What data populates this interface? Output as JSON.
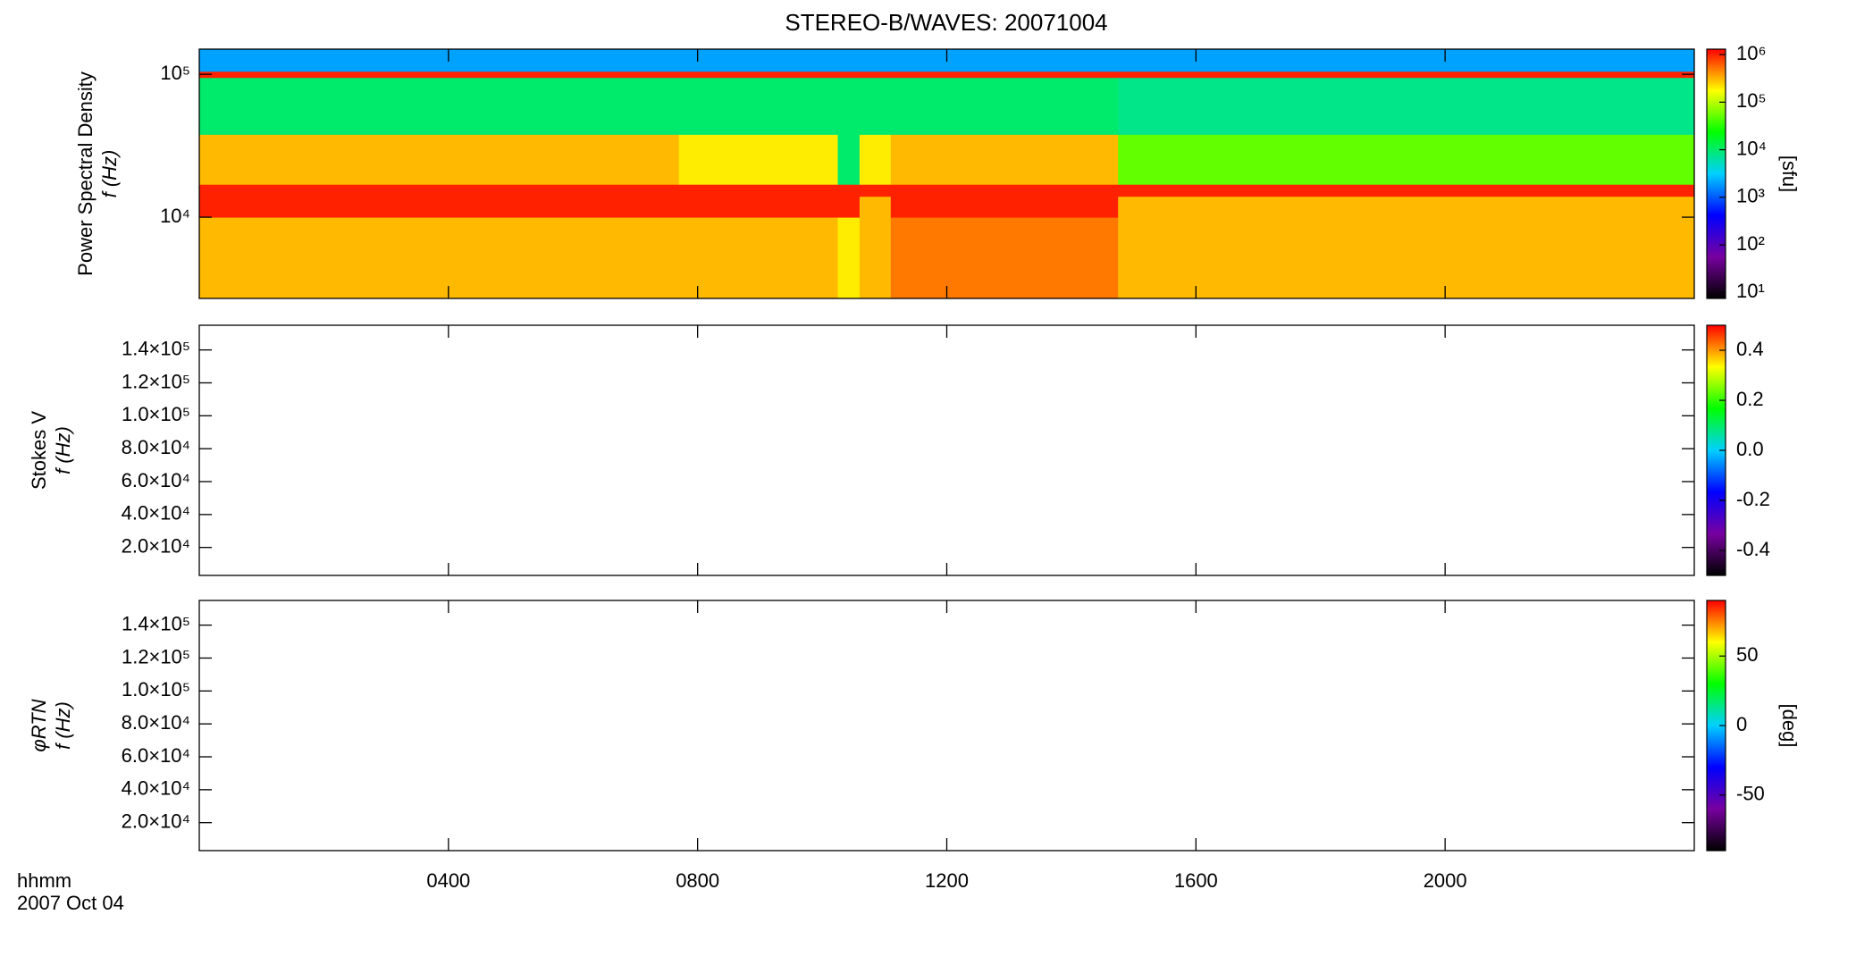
{
  "chart_data": [
    {
      "type": "heatmap",
      "title": "STEREO-B/WAVES: 20071004",
      "ylabel": [
        "Power Spectral Density",
        "f (Hz)"
      ],
      "zlabel": "[sfu]",
      "x": [
        0,
        7.7,
        10.25,
        10.6,
        11.1,
        14.75,
        24
      ],
      "y": [
        2700,
        10000,
        14000,
        17000,
        38000,
        95000,
        105000,
        150000
      ],
      "z": [
        [
          300000,
          300000,
          200000,
          300000,
          500000,
          300000
        ],
        [
          1000000,
          1000000,
          1000000,
          300000,
          1000000,
          300000
        ],
        [
          1000000,
          1000000,
          1000000,
          1000000,
          1000000,
          1000000
        ],
        [
          300000,
          200000,
          10000,
          200000,
          300000,
          50000
        ],
        [
          10000,
          10000,
          10000,
          10000,
          10000,
          8000
        ],
        [
          1000000,
          1000000,
          1000000,
          1000000,
          1000000,
          1000000
        ],
        [
          2000,
          2000,
          2000,
          2000,
          2000,
          2000
        ]
      ],
      "xlim": [
        0,
        24
      ],
      "xticks": [
        4,
        8,
        12,
        16,
        20
      ],
      "ylim": [
        2700,
        150000
      ],
      "ylog": true,
      "yticks": [
        {
          "value": 10000,
          "label": "10⁴"
        },
        {
          "value": 100000,
          "label": "10⁵"
        }
      ],
      "zlim": [
        7.5,
        1300000
      ],
      "zlog": true,
      "zticks": [
        {
          "value": 10,
          "label": "10¹"
        },
        {
          "value": 100,
          "label": "10²"
        },
        {
          "value": 1000,
          "label": "10³"
        },
        {
          "value": 10000,
          "label": "10⁴"
        },
        {
          "value": 100000,
          "label": "10⁵"
        },
        {
          "value": 1000000,
          "label": "10⁶"
        }
      ],
      "colormap": [
        "#000000",
        "#7800a0",
        "#0000ff",
        "#00d0ff",
        "#00ff00",
        "#ffff00",
        "#ff0000"
      ]
    },
    {
      "type": "heatmap",
      "ylabel": [
        "Stokes V",
        "f (Hz)"
      ],
      "xlim": [
        0,
        24
      ],
      "xticks": [
        4,
        8,
        12,
        16,
        20
      ],
      "ylim": [
        3000,
        155000
      ],
      "yticks": [
        {
          "value": 20000,
          "label": "2.0×10⁴"
        },
        {
          "value": 40000,
          "label": "4.0×10⁴"
        },
        {
          "value": 60000,
          "label": "6.0×10⁴"
        },
        {
          "value": 80000,
          "label": "8.0×10⁴"
        },
        {
          "value": 100000,
          "label": "1.0×10⁵"
        },
        {
          "value": 120000,
          "label": "1.2×10⁵"
        },
        {
          "value": 140000,
          "label": "1.4×10⁵"
        }
      ],
      "zlim": [
        -0.5,
        0.5
      ],
      "zticks": [
        -0.4,
        -0.2,
        {
          "value": 0,
          "label": "0.0"
        },
        0.2,
        0.4
      ],
      "colormap": [
        "#000000",
        "#7800a0",
        "#0000ff",
        "#00d0ff",
        "#00ff00",
        "#ffff00",
        "#ff0000"
      ]
    },
    {
      "type": "heatmap",
      "ylabel": [
        "φRTN",
        "f (Hz)"
      ],
      "zlabel": "[deg]",
      "xlabel": [
        "hhmm",
        "2007 Oct 04"
      ],
      "xlim": [
        0,
        24
      ],
      "xticks": [
        {
          "value": 4,
          "label": "0400"
        },
        {
          "value": 8,
          "label": "0800"
        },
        {
          "value": 12,
          "label": "1200"
        },
        {
          "value": 16,
          "label": "1600"
        },
        {
          "value": 20,
          "label": "2000"
        }
      ],
      "ylim": [
        3000,
        155000
      ],
      "yticks": [
        {
          "value": 20000,
          "label": "2.0×10⁴"
        },
        {
          "value": 40000,
          "label": "4.0×10⁴"
        },
        {
          "value": 60000,
          "label": "6.0×10⁴"
        },
        {
          "value": 80000,
          "label": "8.0×10⁴"
        },
        {
          "value": 100000,
          "label": "1.0×10⁵"
        },
        {
          "value": 120000,
          "label": "1.2×10⁵"
        },
        {
          "value": 140000,
          "label": "1.4×10⁵"
        }
      ],
      "zlim": [
        -90,
        90
      ],
      "zticks": [
        -50,
        0,
        50
      ],
      "colormap": [
        "#000000",
        "#7800a0",
        "#0000ff",
        "#00d0ff",
        "#00ff00",
        "#ffff00",
        "#ff0000"
      ]
    }
  ]
}
